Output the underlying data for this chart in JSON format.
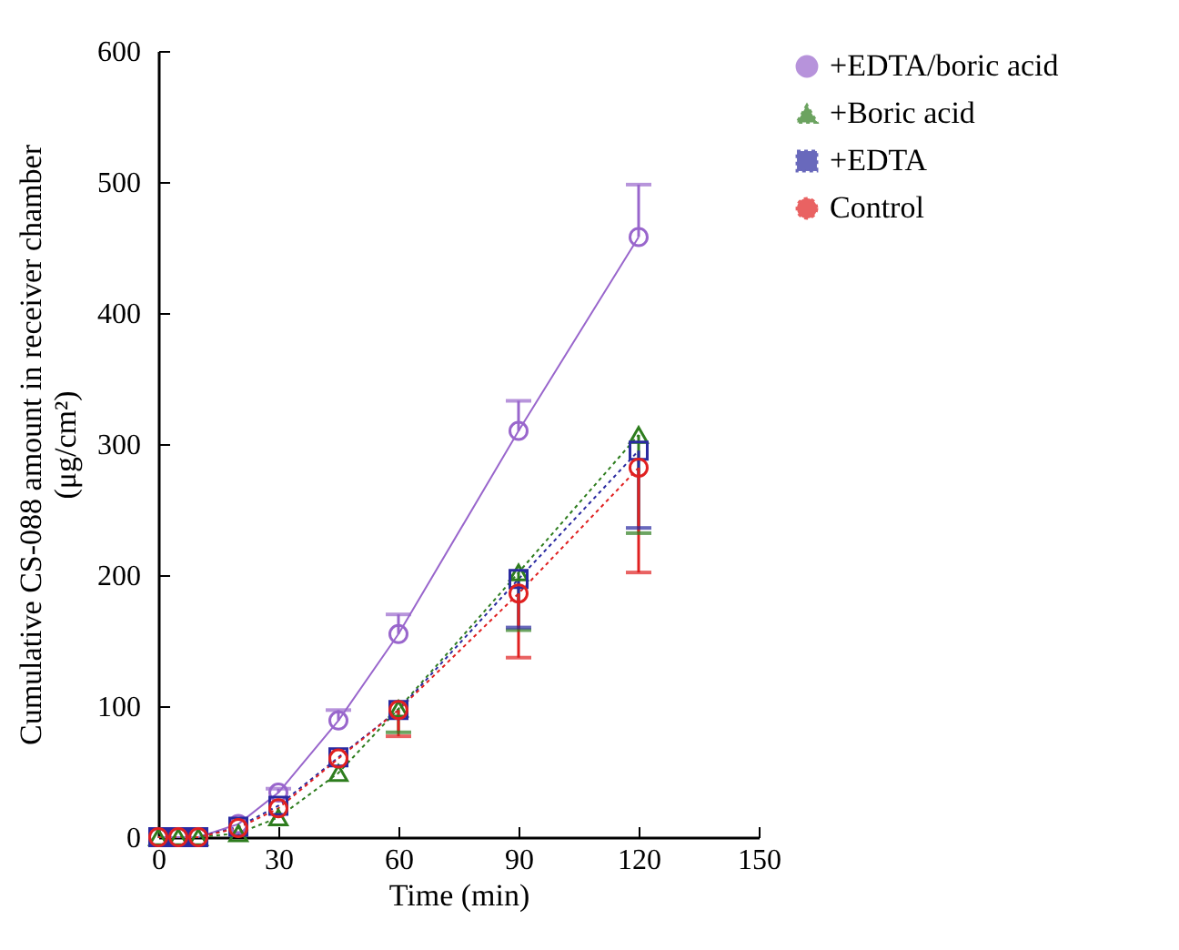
{
  "chart_data": {
    "type": "line",
    "xlabel": "Time (min)",
    "ylabel": [
      "Cumulative CS-088 amount in receiver chamber",
      "(μg/cm²)"
    ],
    "x": [
      0,
      5,
      10,
      20,
      30,
      45,
      60,
      90,
      120
    ],
    "xlim": [
      0,
      150
    ],
    "xticks": [
      0,
      30,
      60,
      90,
      120,
      150
    ],
    "ylim": [
      0,
      600
    ],
    "yticks": [
      0,
      100,
      200,
      300,
      400,
      500,
      600
    ],
    "grid": false,
    "legend": "right",
    "series": [
      {
        "name": "+EDTA/boric acid",
        "color": "#9966cc",
        "marker": "circle",
        "line_style": "solid",
        "values": [
          0,
          0,
          0,
          10,
          34,
          89,
          155,
          310,
          458
        ],
        "errors": [
          null,
          null,
          null,
          null,
          [
            34,
            37
          ],
          [
            89,
            97
          ],
          [
            155,
            170
          ],
          [
            310,
            333
          ],
          [
            458,
            498
          ]
        ]
      },
      {
        "name": "+Boric acid",
        "color": "#2e7d1e",
        "marker": "triangle",
        "line_style": "dotted",
        "values": [
          0,
          0,
          0,
          3,
          15,
          49,
          98,
          202,
          307
        ],
        "errors": [
          null,
          null,
          null,
          null,
          null,
          null,
          [
            80,
            98
          ],
          [
            158,
            202
          ],
          [
            232,
            307
          ]
        ]
      },
      {
        "name": "+EDTA",
        "color": "#2a2aa0",
        "marker": "square",
        "line_style": "dotted",
        "values": [
          0,
          0,
          0,
          8,
          24,
          61,
          97,
          197,
          295
        ],
        "errors": [
          null,
          null,
          null,
          null,
          null,
          null,
          null,
          [
            160,
            197
          ],
          [
            236,
            295
          ]
        ]
      },
      {
        "name": "Control",
        "color": "#e02020",
        "marker": "circle",
        "line_style": "dotted",
        "values": [
          0,
          0,
          0,
          7,
          22,
          60,
          97,
          186,
          282
        ],
        "errors": [
          null,
          null,
          null,
          null,
          null,
          null,
          [
            77,
            97
          ],
          [
            137,
            186
          ],
          [
            202,
            282
          ]
        ]
      }
    ]
  }
}
